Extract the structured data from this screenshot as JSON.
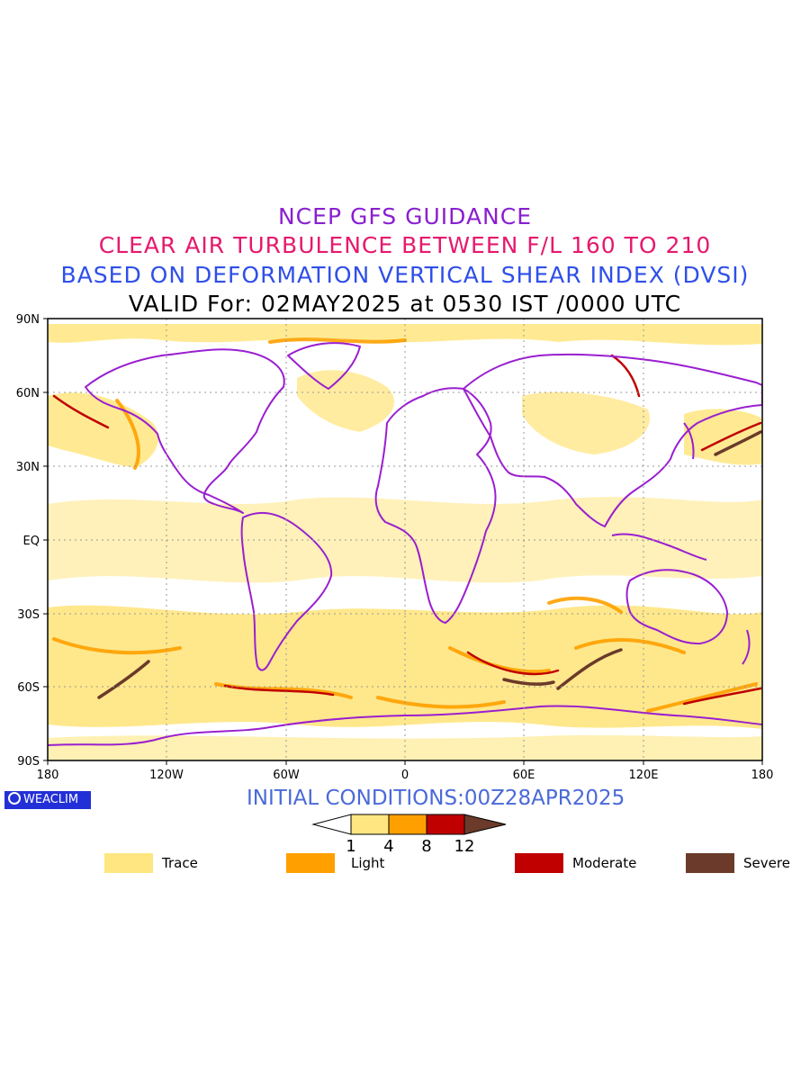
{
  "titles": {
    "line1": "NCEP GFS GUIDANCE",
    "line2": "CLEAR AIR TURBULENCE BETWEEN F/L 160 TO 210",
    "line3": "BASED ON DEFORMATION VERTICAL SHEAR INDEX (DVSI)",
    "line4": "VALID For: 02MAY2025 at 0530 IST /0000 UTC"
  },
  "map": {
    "lat_labels": [
      "90N",
      "60N",
      "30N",
      "EQ",
      "30S",
      "60S",
      "90S"
    ],
    "lon_labels": [
      "180",
      "120W",
      "60W",
      "0",
      "60E",
      "120E",
      "180"
    ],
    "colors": {
      "trace": "#ffe680",
      "light": "#ffa000",
      "moderate": "#c00000",
      "severe": "#6b3a2a",
      "boundaries": "#9a1fd0",
      "grid": "#999999"
    }
  },
  "initial_conditions": "INITIAL CONDITIONS:00Z28APR2025",
  "logo": {
    "text": "WEACLIM"
  },
  "colorbar": {
    "ticks": [
      "1",
      "4",
      "8",
      "12"
    ],
    "colors": [
      "#ffffff",
      "#ffe680",
      "#ffa000",
      "#c00000",
      "#6b3a2a"
    ]
  },
  "legend": [
    {
      "label": "Trace",
      "color": "#ffe680"
    },
    {
      "label": "Light",
      "color": "#ffa000"
    },
    {
      "label": "Moderate",
      "color": "#c00000"
    },
    {
      "label": "Severe",
      "color": "#6b3a2a"
    }
  ]
}
